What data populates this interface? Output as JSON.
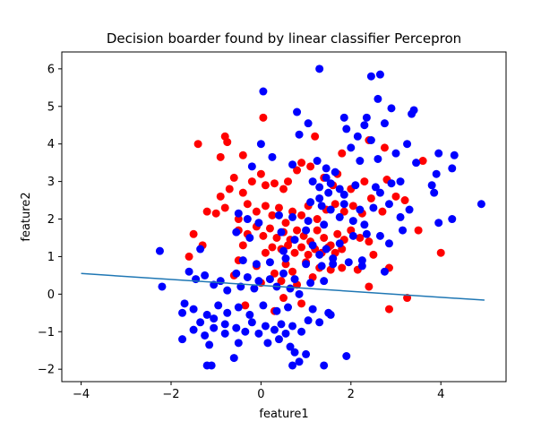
{
  "chart_data": {
    "type": "scatter",
    "title": "Decision boarder found by linear classifier Percepron",
    "xlabel": "feature1",
    "ylabel": "feature2",
    "xlim": [
      -4.43,
      5.45
    ],
    "ylim": [
      -2.33,
      6.45
    ],
    "xticks": [
      -4,
      -2,
      0,
      2,
      4
    ],
    "yticks": [
      -2,
      -1,
      0,
      1,
      2,
      3,
      4,
      5,
      6
    ],
    "grid": false,
    "legend": "none",
    "colors": {
      "class_red": "#ff0000",
      "class_blue": "#0000ff",
      "boundary": "#1f77b4"
    },
    "series": [
      {
        "color": "red",
        "points": [
          [
            -1.4,
            4.0
          ],
          [
            -0.8,
            4.2
          ],
          [
            -0.75,
            4.05
          ],
          [
            -0.9,
            3.65
          ],
          [
            -0.4,
            3.7
          ],
          [
            0.05,
            4.7
          ],
          [
            0.9,
            3.5
          ],
          [
            1.2,
            4.2
          ],
          [
            1.7,
            3.2
          ],
          [
            1.8,
            3.75
          ],
          [
            2.4,
            4.1
          ],
          [
            2.75,
            3.9
          ],
          [
            3.6,
            3.55
          ],
          [
            -0.9,
            2.6
          ],
          [
            -0.7,
            2.8
          ],
          [
            -0.6,
            3.1
          ],
          [
            -0.4,
            2.7
          ],
          [
            -0.2,
            3.0
          ],
          [
            0.0,
            3.2
          ],
          [
            0.1,
            2.9
          ],
          [
            0.3,
            2.95
          ],
          [
            0.5,
            2.8
          ],
          [
            0.6,
            3.0
          ],
          [
            0.8,
            3.3
          ],
          [
            1.1,
            3.4
          ],
          [
            1.4,
            3.1
          ],
          [
            1.6,
            2.9
          ],
          [
            2.0,
            2.8
          ],
          [
            2.3,
            3.0
          ],
          [
            2.8,
            3.05
          ],
          [
            3.0,
            2.6
          ],
          [
            3.2,
            2.5
          ],
          [
            -1.2,
            2.2
          ],
          [
            -1.0,
            2.15
          ],
          [
            -0.8,
            2.3
          ],
          [
            -0.5,
            2.0
          ],
          [
            -0.3,
            2.4
          ],
          [
            -0.1,
            2.2
          ],
          [
            0.1,
            2.35
          ],
          [
            0.25,
            2.1
          ],
          [
            0.4,
            2.3
          ],
          [
            0.55,
            1.9
          ],
          [
            0.7,
            2.2
          ],
          [
            0.9,
            2.1
          ],
          [
            1.05,
            2.35
          ],
          [
            1.25,
            2.0
          ],
          [
            1.45,
            2.25
          ],
          [
            1.65,
            2.4
          ],
          [
            1.85,
            2.2
          ],
          [
            2.05,
            2.35
          ],
          [
            2.25,
            2.15
          ],
          [
            2.45,
            2.55
          ],
          [
            2.7,
            2.2
          ],
          [
            -0.5,
            1.7
          ],
          [
            -0.3,
            1.6
          ],
          [
            -0.1,
            1.8
          ],
          [
            0.05,
            1.55
          ],
          [
            0.2,
            1.75
          ],
          [
            0.35,
            1.5
          ],
          [
            0.5,
            1.65
          ],
          [
            0.65,
            1.45
          ],
          [
            0.8,
            1.7
          ],
          [
            0.95,
            1.55
          ],
          [
            1.1,
            1.4
          ],
          [
            1.25,
            1.7
          ],
          [
            1.4,
            1.5
          ],
          [
            1.55,
            1.3
          ],
          [
            1.7,
            1.6
          ],
          [
            1.85,
            1.45
          ],
          [
            2.0,
            1.7
          ],
          [
            2.2,
            1.5
          ],
          [
            2.4,
            1.4
          ],
          [
            -1.3,
            1.3
          ],
          [
            -1.5,
            1.6
          ],
          [
            -0.4,
            1.3
          ],
          [
            0.1,
            1.1
          ],
          [
            0.25,
            1.25
          ],
          [
            0.45,
            1.2
          ],
          [
            0.6,
            1.3
          ],
          [
            0.75,
            1.1
          ],
          [
            0.9,
            1.25
          ],
          [
            1.05,
            1.05
          ],
          [
            1.2,
            1.2
          ],
          [
            1.35,
            1.1
          ],
          [
            1.5,
            1.25
          ],
          [
            1.65,
            1.1
          ],
          [
            1.8,
            1.2
          ],
          [
            2.5,
            1.05
          ],
          [
            3.5,
            1.7
          ],
          [
            4.0,
            1.1
          ],
          [
            -1.6,
            1.0
          ],
          [
            -0.5,
            0.9
          ],
          [
            -0.1,
            0.75
          ],
          [
            0.3,
            0.55
          ],
          [
            0.55,
            0.8
          ],
          [
            0.7,
            0.6
          ],
          [
            1.0,
            0.85
          ],
          [
            1.3,
            0.7
          ],
          [
            1.55,
            0.65
          ],
          [
            1.8,
            0.7
          ],
          [
            2.15,
            0.65
          ],
          [
            2.85,
            0.7
          ],
          [
            -0.6,
            0.5
          ],
          [
            0.0,
            0.3
          ],
          [
            0.45,
            0.35
          ],
          [
            0.8,
            0.25
          ],
          [
            1.15,
            0.45
          ],
          [
            2.4,
            0.2
          ],
          [
            3.25,
            -0.1
          ],
          [
            2.85,
            -0.4
          ],
          [
            -0.35,
            -0.3
          ],
          [
            0.5,
            -0.1
          ],
          [
            0.9,
            -0.25
          ],
          [
            0.3,
            -0.45
          ]
        ]
      },
      {
        "color": "blue",
        "points": [
          [
            1.3,
            6.0
          ],
          [
            2.45,
            5.8
          ],
          [
            2.65,
            5.85
          ],
          [
            0.05,
            5.4
          ],
          [
            2.6,
            5.2
          ],
          [
            2.9,
            4.95
          ],
          [
            3.4,
            4.9
          ],
          [
            3.35,
            4.8
          ],
          [
            0.8,
            4.85
          ],
          [
            1.05,
            4.55
          ],
          [
            2.35,
            4.7
          ],
          [
            2.75,
            4.55
          ],
          [
            2.3,
            4.5
          ],
          [
            1.85,
            4.7
          ],
          [
            1.9,
            4.4
          ],
          [
            2.15,
            4.2
          ],
          [
            2.45,
            4.1
          ],
          [
            0.0,
            4.0
          ],
          [
            0.85,
            4.25
          ],
          [
            3.25,
            4.0
          ],
          [
            2.0,
            3.9
          ],
          [
            3.0,
            3.75
          ],
          [
            3.95,
            3.75
          ],
          [
            4.3,
            3.7
          ],
          [
            2.6,
            3.6
          ],
          [
            -0.2,
            3.4
          ],
          [
            0.25,
            3.65
          ],
          [
            0.7,
            3.45
          ],
          [
            1.25,
            3.55
          ],
          [
            1.45,
            3.35
          ],
          [
            1.65,
            3.25
          ],
          [
            2.2,
            3.55
          ],
          [
            3.45,
            3.5
          ],
          [
            4.25,
            3.35
          ],
          [
            3.9,
            3.2
          ],
          [
            1.45,
            3.1
          ],
          [
            1.15,
            3.0
          ],
          [
            1.3,
            2.85
          ],
          [
            1.55,
            2.95
          ],
          [
            1.75,
            2.8
          ],
          [
            2.1,
            2.9
          ],
          [
            2.55,
            2.85
          ],
          [
            2.9,
            2.95
          ],
          [
            3.1,
            3.0
          ],
          [
            3.8,
            2.9
          ],
          [
            3.85,
            2.7
          ],
          [
            1.5,
            2.7
          ],
          [
            1.3,
            2.55
          ],
          [
            1.85,
            2.65
          ],
          [
            2.65,
            2.7
          ],
          [
            1.1,
            2.45
          ],
          [
            1.35,
            2.35
          ],
          [
            1.55,
            2.25
          ],
          [
            1.85,
            2.4
          ],
          [
            2.2,
            2.25
          ],
          [
            2.5,
            2.3
          ],
          [
            2.85,
            2.4
          ],
          [
            3.3,
            2.25
          ],
          [
            -0.5,
            2.15
          ],
          [
            -0.3,
            2.0
          ],
          [
            -0.05,
            1.9
          ],
          [
            0.4,
            2.1
          ],
          [
            0.7,
            2.05
          ],
          [
            1.05,
            1.95
          ],
          [
            1.4,
            1.85
          ],
          [
            1.75,
            2.05
          ],
          [
            2.05,
            1.95
          ],
          [
            2.3,
            1.85
          ],
          [
            3.1,
            2.05
          ],
          [
            3.95,
            1.9
          ],
          [
            4.25,
            2.0
          ],
          [
            -0.55,
            1.65
          ],
          [
            -0.25,
            1.5
          ],
          [
            0.45,
            1.65
          ],
          [
            0.75,
            1.45
          ],
          [
            1.0,
            1.7
          ],
          [
            1.15,
            1.3
          ],
          [
            1.45,
            1.2
          ],
          [
            1.75,
            1.35
          ],
          [
            2.05,
            1.55
          ],
          [
            2.35,
            1.6
          ],
          [
            2.65,
            1.55
          ],
          [
            2.85,
            1.35
          ],
          [
            3.15,
            1.7
          ],
          [
            -2.25,
            1.15
          ],
          [
            -1.35,
            1.2
          ],
          [
            0.5,
            1.15
          ],
          [
            1.3,
            1.05
          ],
          [
            1.6,
            0.95
          ],
          [
            2.25,
            0.9
          ],
          [
            -0.4,
            0.9
          ],
          [
            -0.1,
            0.8
          ],
          [
            0.2,
            0.85
          ],
          [
            0.55,
            0.95
          ],
          [
            1.0,
            0.8
          ],
          [
            1.35,
            0.75
          ],
          [
            1.6,
            0.8
          ],
          [
            1.95,
            0.85
          ],
          [
            2.25,
            0.75
          ],
          [
            2.75,
            0.6
          ],
          [
            -1.6,
            0.6
          ],
          [
            -1.25,
            0.5
          ],
          [
            -0.9,
            0.35
          ],
          [
            -0.55,
            0.55
          ],
          [
            -0.3,
            0.45
          ],
          [
            -0.05,
            0.35
          ],
          [
            0.2,
            0.4
          ],
          [
            0.5,
            0.55
          ],
          [
            0.75,
            0.4
          ],
          [
            1.1,
            0.3
          ],
          [
            1.4,
            0.35
          ],
          [
            -2.2,
            0.2
          ],
          [
            -1.45,
            0.4
          ],
          [
            -1.05,
            0.25
          ],
          [
            -0.75,
            0.1
          ],
          [
            -0.45,
            0.2
          ],
          [
            -0.15,
            0.15
          ],
          [
            0.35,
            0.2
          ],
          [
            0.65,
            0.15
          ],
          [
            0.85,
            0.0
          ],
          [
            -1.7,
            -0.25
          ],
          [
            -1.5,
            -0.4
          ],
          [
            -1.2,
            -0.55
          ],
          [
            -0.95,
            -0.3
          ],
          [
            -0.75,
            -0.5
          ],
          [
            -0.5,
            -0.35
          ],
          [
            -0.25,
            -0.55
          ],
          [
            0.05,
            -0.3
          ],
          [
            0.35,
            -0.45
          ],
          [
            0.6,
            -0.35
          ],
          [
            1.15,
            -0.4
          ],
          [
            1.5,
            -0.5
          ],
          [
            -1.75,
            -0.5
          ],
          [
            -1.35,
            -0.75
          ],
          [
            -1.05,
            -0.65
          ],
          [
            -0.8,
            -0.8
          ],
          [
            -0.55,
            -0.9
          ],
          [
            -0.2,
            -0.75
          ],
          [
            0.1,
            -0.85
          ],
          [
            0.45,
            -0.8
          ],
          [
            0.7,
            -0.85
          ],
          [
            1.05,
            -0.7
          ],
          [
            1.3,
            -0.75
          ],
          [
            1.55,
            -0.55
          ],
          [
            -1.5,
            -0.95
          ],
          [
            -1.25,
            -1.1
          ],
          [
            -1.05,
            -0.9
          ],
          [
            -0.8,
            -1.05
          ],
          [
            -0.35,
            -1.0
          ],
          [
            -0.05,
            -1.05
          ],
          [
            0.3,
            -0.95
          ],
          [
            0.55,
            -1.05
          ],
          [
            0.9,
            -1.0
          ],
          [
            -1.75,
            -1.2
          ],
          [
            -1.15,
            -1.35
          ],
          [
            -0.5,
            -1.3
          ],
          [
            0.15,
            -1.3
          ],
          [
            0.4,
            -1.2
          ],
          [
            0.65,
            -1.4
          ],
          [
            -0.6,
            -1.7
          ],
          [
            0.75,
            -1.55
          ],
          [
            1.0,
            -1.6
          ],
          [
            1.9,
            -1.65
          ],
          [
            -1.2,
            -1.9
          ],
          [
            -1.1,
            -1.9
          ],
          [
            0.7,
            -1.9
          ],
          [
            0.85,
            -1.8
          ],
          [
            1.4,
            -1.9
          ],
          [
            4.9,
            2.4
          ]
        ]
      }
    ],
    "decision_boundary": {
      "x": [
        -4.0,
        4.97
      ],
      "y": [
        0.55,
        -0.16
      ]
    }
  }
}
